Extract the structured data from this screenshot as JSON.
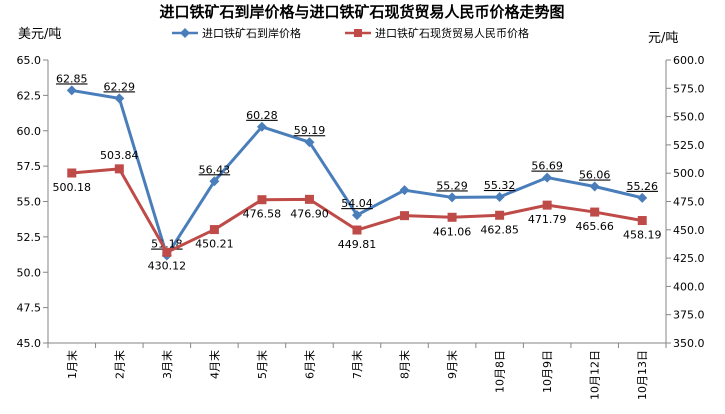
{
  "chart_data": {
    "type": "line",
    "title": "进口铁矿石到岸价格与进口铁矿石现货贸易人民币价格走势图",
    "ylabel_left": "美元/吨",
    "ylabel_right": "元/吨",
    "categories": [
      "1月末",
      "2月末",
      "3月末",
      "4月末",
      "5月末",
      "6月末",
      "7月末",
      "8月末",
      "9月末",
      "10月8日",
      "10月9日",
      "10月12日",
      "10月13日"
    ],
    "ylim_left": [
      45.0,
      65.0
    ],
    "ylim_right": [
      350.0,
      600.0
    ],
    "yticks_left": [
      "45.0",
      "47.5",
      "50.0",
      "52.5",
      "55.0",
      "57.5",
      "60.0",
      "62.5",
      "65.0"
    ],
    "yticks_right": [
      "350.0",
      "375.0",
      "400.0",
      "425.0",
      "450.0",
      "475.0",
      "500.0",
      "525.0",
      "550.0",
      "575.0",
      "600.0"
    ],
    "grid": false,
    "legend_position": "top",
    "series": [
      {
        "name": "进口铁矿石到岸价格",
        "axis": "left",
        "color": "#4a7ebb",
        "marker": "diamond",
        "values": [
          62.85,
          62.29,
          51.18,
          56.43,
          60.28,
          59.19,
          54.04,
          55.8,
          55.29,
          55.32,
          56.69,
          56.06,
          55.26
        ],
        "labels": [
          "62.85",
          "62.29",
          "51.18",
          "56.43",
          "60.28",
          "59.19",
          "54.04",
          "",
          "55.29",
          "55.32",
          "56.69",
          "56.06",
          "55.26"
        ]
      },
      {
        "name": "进口铁矿石现货贸易人民币价格",
        "axis": "right",
        "color": "#be4b48",
        "marker": "square",
        "values": [
          500.18,
          503.84,
          430.12,
          450.21,
          476.58,
          476.9,
          449.81,
          462.5,
          461.06,
          462.85,
          471.79,
          465.66,
          458.19
        ],
        "labels": [
          "500.18",
          "503.84",
          "430.12",
          "450.21",
          "476.58",
          "476.90",
          "449.81",
          "",
          "461.06",
          "462.85",
          "471.79",
          "465.66",
          "458.19"
        ]
      }
    ]
  }
}
